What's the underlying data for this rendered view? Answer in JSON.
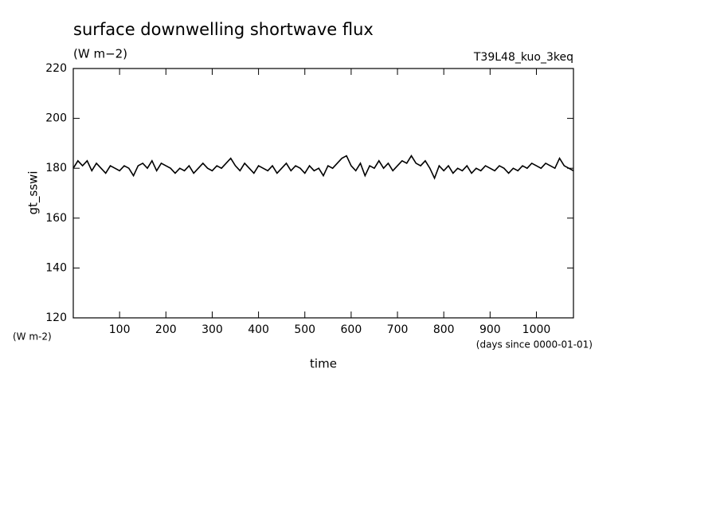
{
  "chart_data": {
    "type": "line",
    "title": "surface downwelling shortwave flux",
    "subtitle": "(W m−2)",
    "annotation": "T39L48_kuo_3keq",
    "y_label": "gt_sswi",
    "y_units": "(W m-2)",
    "x_label": "time",
    "x_units": "(days since 0000-01-01)",
    "xlim": [
      0,
      1080
    ],
    "xticks": [
      100,
      200,
      300,
      400,
      500,
      600,
      700,
      800,
      900,
      1000
    ],
    "ylim": [
      120,
      220
    ],
    "yticks": [
      120,
      140,
      160,
      180,
      200,
      220
    ],
    "series": [
      {
        "color": "#000000",
        "x": [
          0,
          10,
          20,
          30,
          40,
          50,
          60,
          70,
          80,
          90,
          100,
          110,
          120,
          130,
          140,
          150,
          160,
          170,
          180,
          190,
          200,
          210,
          220,
          230,
          240,
          250,
          260,
          270,
          280,
          290,
          300,
          310,
          320,
          330,
          340,
          350,
          360,
          370,
          380,
          390,
          400,
          410,
          420,
          430,
          440,
          450,
          460,
          470,
          480,
          490,
          500,
          510,
          520,
          530,
          540,
          550,
          560,
          570,
          580,
          590,
          600,
          610,
          620,
          630,
          640,
          650,
          660,
          670,
          680,
          690,
          700,
          710,
          720,
          730,
          740,
          750,
          760,
          770,
          780,
          790,
          800,
          810,
          820,
          830,
          840,
          850,
          860,
          870,
          880,
          890,
          900,
          910,
          920,
          930,
          940,
          950,
          960,
          970,
          980,
          990,
          1000,
          1010,
          1020,
          1030,
          1040,
          1050,
          1060,
          1070,
          1080
        ],
        "values": [
          180,
          183,
          181,
          183,
          179,
          182,
          180,
          178,
          181,
          180,
          179,
          181,
          180,
          177,
          181,
          182,
          180,
          183,
          179,
          182,
          181,
          180,
          178,
          180,
          179,
          181,
          178,
          180,
          182,
          180,
          179,
          181,
          180,
          182,
          184,
          181,
          179,
          182,
          180,
          178,
          181,
          180,
          179,
          181,
          178,
          180,
          182,
          179,
          181,
          180,
          178,
          181,
          179,
          180,
          177,
          181,
          180,
          182,
          184,
          185,
          181,
          179,
          182,
          177,
          181,
          180,
          183,
          180,
          182,
          179,
          181,
          183,
          182,
          185,
          182,
          181,
          183,
          180,
          176,
          181,
          179,
          181,
          178,
          180,
          179,
          181,
          178,
          180,
          179,
          181,
          180,
          179,
          181,
          180,
          178,
          180,
          179,
          181,
          180,
          182,
          181,
          180,
          182,
          181,
          180,
          184,
          181,
          180,
          179
        ]
      }
    ]
  }
}
